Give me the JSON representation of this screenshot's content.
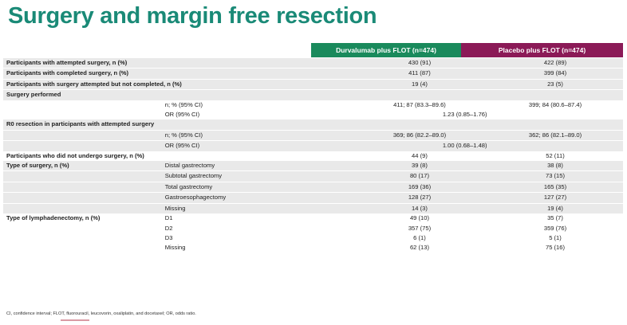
{
  "title": "Surgery and margin free resection",
  "columns": {
    "durvalumab": "Durvalumab plus FLOT (n=474)",
    "placebo": "Placebo plus FLOT (n=474)"
  },
  "rows": {
    "attempted": {
      "label": "Participants with attempted surgery, n (%)",
      "d": "430 (91)",
      "p": "422 (89)"
    },
    "completed": {
      "label": "Participants with completed surgery, n (%)",
      "d": "411 (87)",
      "p": "399 (84)"
    },
    "not_completed": {
      "label": "Participants with surgery attempted but not completed, n (%)",
      "d": "19 (4)",
      "p": "23 (5)"
    },
    "surgery_performed": {
      "label": "Surgery performed",
      "n_label": "n; % (95% CI)",
      "n_d": "411; 87 (83.3–89.6)",
      "n_p": "399; 84 (80.6–87.4)",
      "or_label": "OR (95% CI)",
      "or_val": "1.23 (0.85–1.76)"
    },
    "r0": {
      "label": "R0 resection in participants with attempted surgery",
      "n_label": "n; % (95% CI)",
      "n_d": "369; 86 (82.2–89.0)",
      "n_p": "362; 86 (82.1–89.0)",
      "or_label": "OR (95% CI)",
      "or_val": "1.00 (0.68–1.48)"
    },
    "no_surgery": {
      "label": "Participants who did not undergo surgery, n (%)",
      "d": "44 (9)",
      "p": "52 (11)"
    },
    "type_surgery": {
      "label": "Type of surgery, n (%)",
      "items": [
        {
          "name": "Distal gastrectomy",
          "d": "39 (8)",
          "p": "38 (8)"
        },
        {
          "name": "Subtotal gastrectomy",
          "d": "80 (17)",
          "p": "73 (15)"
        },
        {
          "name": "Total gastrectomy",
          "d": "169 (36)",
          "p": "165 (35)"
        },
        {
          "name": "Gastroesophagectomy",
          "d": "128 (27)",
          "p": "127 (27)"
        },
        {
          "name": "Missing",
          "d": "14 (3)",
          "p": "19 (4)"
        }
      ]
    },
    "type_lymph": {
      "label": "Type of lymphadenectomy, n (%)",
      "items": [
        {
          "name": "D1",
          "d": "49 (10)",
          "p": "35 (7)"
        },
        {
          "name": "D2",
          "d": "357 (75)",
          "p": "359 (76)"
        },
        {
          "name": "D3",
          "d": "6 (1)",
          "p": "5 (1)"
        },
        {
          "name": "Missing",
          "d": "62 (13)",
          "p": "75 (16)"
        }
      ]
    }
  },
  "footnote": "CI, confidence interval; FLOT, fluorouracil, leucovorin, oxaliplatin, and docetaxel; OR, odds ratio.",
  "colors": {
    "title": "#1a8a77",
    "durvalumab_header": "#1a8a5c",
    "placebo_header": "#8b1a57",
    "row_shade": "#e9e9e9"
  }
}
